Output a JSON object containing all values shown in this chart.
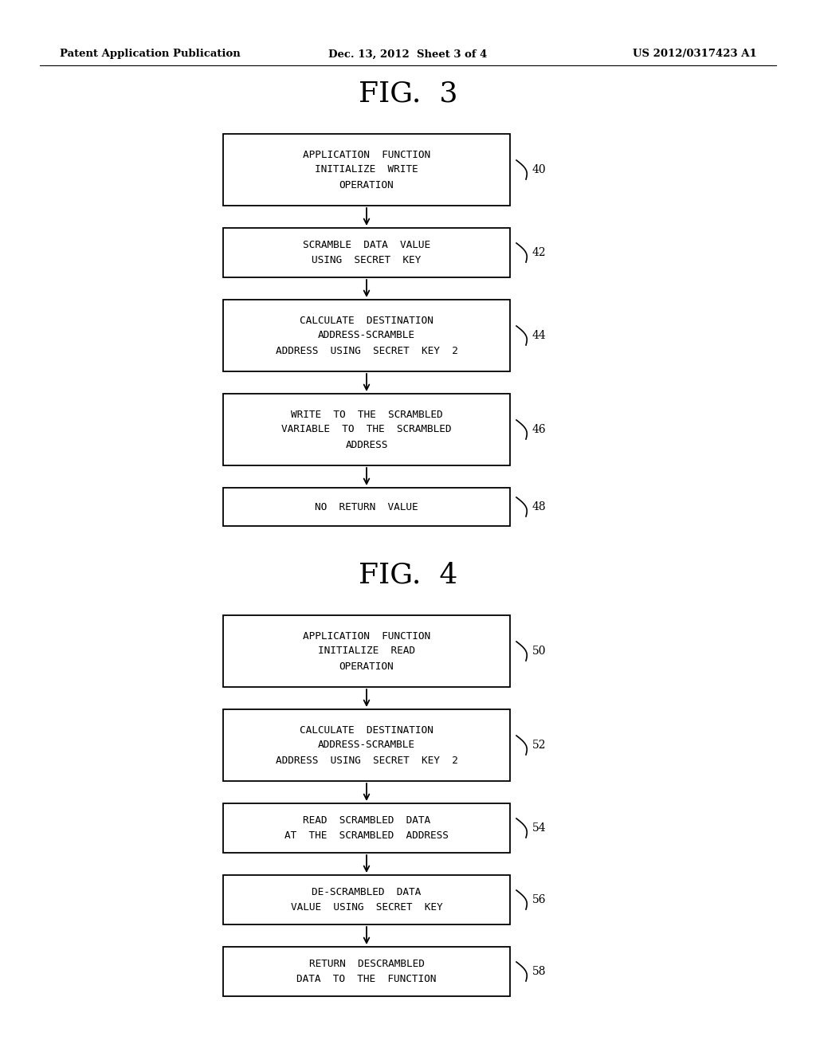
{
  "bg_color": "#ffffff",
  "header_left": "Patent Application Publication",
  "header_center": "Dec. 13, 2012  Sheet 3 of 4",
  "header_right": "US 2012/0317423 A1",
  "fig3_title": "FIG.  3",
  "fig4_title": "FIG.  4",
  "fig3_boxes": [
    {
      "label": "APPLICATION  FUNCTION\nINITIALIZE  WRITE\nOPERATION",
      "tag": "40"
    },
    {
      "label": "SCRAMBLE  DATA  VALUE\nUSING  SECRET  KEY",
      "tag": "42"
    },
    {
      "label": "CALCULATE  DESTINATION\nADDRESS-SCRAMBLE\nADDRESS  USING  SECRET  KEY  2",
      "tag": "44"
    },
    {
      "label": "WRITE  TO  THE  SCRAMBLED\nVARIABLE  TO  THE  SCRAMBLED\nADDRESS",
      "tag": "46"
    },
    {
      "label": "NO  RETURN  VALUE",
      "tag": "48"
    }
  ],
  "fig4_boxes": [
    {
      "label": "APPLICATION  FUNCTION\nINITIALIZE  READ\nOPERATION",
      "tag": "50"
    },
    {
      "label": "CALCULATE  DESTINATION\nADDRESS-SCRAMBLE\nADDRESS  USING  SECRET  KEY  2",
      "tag": "52"
    },
    {
      "label": "READ  SCRAMBLED  DATA\nAT  THE  SCRAMBLED  ADDRESS",
      "tag": "54"
    },
    {
      "label": "DE-SCRAMBLED  DATA\nVALUE  USING  SECRET  KEY",
      "tag": "56"
    },
    {
      "label": "RETURN  DESCRAMBLED\nDATA  TO  THE  FUNCTION",
      "tag": "58"
    }
  ],
  "box_color": "#ffffff",
  "box_edge_color": "#000000",
  "text_color": "#000000",
  "arrow_color": "#000000"
}
